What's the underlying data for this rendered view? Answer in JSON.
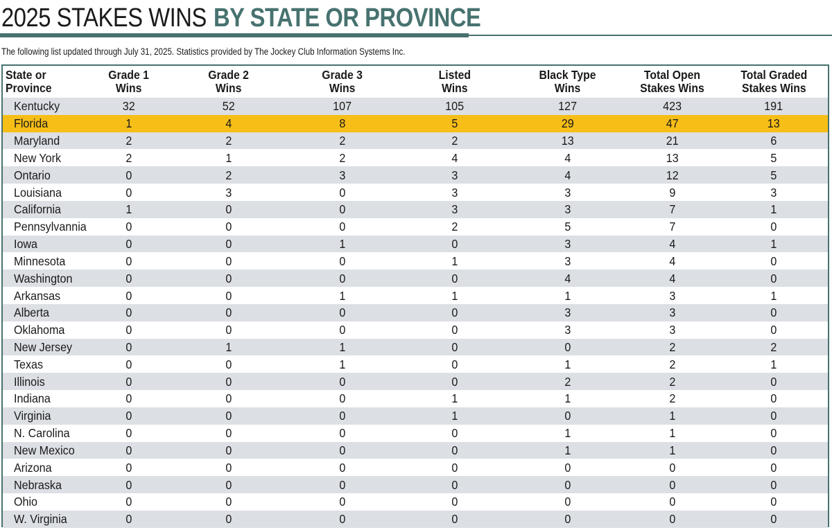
{
  "title": {
    "light": "2025 STAKES WINS",
    "bold": "BY STATE OR PROVINCE"
  },
  "subtitle": "The following list updated through July 31, 2025. Statistics provided by The Jockey Club Information Systems Inc.",
  "colors": {
    "accent": "#47726f",
    "highlight": "#f7be17",
    "stripe": "#dcdfe4"
  },
  "chart_data": {
    "type": "table",
    "columns": [
      {
        "line1": "State or",
        "line2": "Province"
      },
      {
        "line1": "Grade 1",
        "line2": "Wins"
      },
      {
        "line1": "Grade 2",
        "line2": "Wins"
      },
      {
        "line1": "Grade 3",
        "line2": "Wins"
      },
      {
        "line1": "Listed",
        "line2": "Wins"
      },
      {
        "line1": "Black Type",
        "line2": "Wins"
      },
      {
        "line1": "Total Open",
        "line2": "Stakes Wins"
      },
      {
        "line1": "Total Graded",
        "line2": "Stakes Wins"
      }
    ],
    "highlighted_row": "Florida",
    "rows": [
      [
        "Kentucky",
        "32",
        "52",
        "107",
        "105",
        "127",
        "423",
        "191"
      ],
      [
        "Florida",
        "1",
        "4",
        "8",
        "5",
        "29",
        "47",
        "13"
      ],
      [
        "Maryland",
        "2",
        "2",
        "2",
        "2",
        "13",
        "21",
        "6"
      ],
      [
        "New York",
        "2",
        "1",
        "2",
        "4",
        "4",
        "13",
        "5"
      ],
      [
        "Ontario",
        "0",
        "2",
        "3",
        "3",
        "4",
        "12",
        "5"
      ],
      [
        "Louisiana",
        "0",
        "3",
        "0",
        "3",
        "3",
        "9",
        "3"
      ],
      [
        "California",
        "1",
        "0",
        "0",
        "3",
        "3",
        "7",
        "1"
      ],
      [
        "Pennsylvannia",
        "0",
        "0",
        "0",
        "2",
        "5",
        "7",
        "0"
      ],
      [
        "Iowa",
        "0",
        "0",
        "1",
        "0",
        "3",
        "4",
        "1"
      ],
      [
        "Minnesota",
        "0",
        "0",
        "0",
        "1",
        "3",
        "4",
        "0"
      ],
      [
        "Washington",
        "0",
        "0",
        "0",
        "0",
        "4",
        "4",
        "0"
      ],
      [
        "Arkansas",
        "0",
        "0",
        "1",
        "1",
        "1",
        "3",
        "1"
      ],
      [
        "Alberta",
        "0",
        "0",
        "0",
        "0",
        "3",
        "3",
        "0"
      ],
      [
        "Oklahoma",
        "0",
        "0",
        "0",
        "0",
        "3",
        "3",
        "0"
      ],
      [
        "New Jersey",
        "0",
        "1",
        "1",
        "0",
        "0",
        "2",
        "2"
      ],
      [
        "Texas",
        "0",
        "0",
        "1",
        "0",
        "1",
        "2",
        "1"
      ],
      [
        "Illinois",
        "0",
        "0",
        "0",
        "0",
        "2",
        "2",
        "0"
      ],
      [
        "Indiana",
        "0",
        "0",
        "0",
        "1",
        "1",
        "2",
        "0"
      ],
      [
        "Virginia",
        "0",
        "0",
        "0",
        "1",
        "0",
        "1",
        "0"
      ],
      [
        "N. Carolina",
        "0",
        "0",
        "0",
        "0",
        "1",
        "1",
        "0"
      ],
      [
        "New Mexico",
        "0",
        "0",
        "0",
        "0",
        "1",
        "1",
        "0"
      ],
      [
        "Arizona",
        "0",
        "0",
        "0",
        "0",
        "0",
        "0",
        "0"
      ],
      [
        "Nebraska",
        "0",
        "0",
        "0",
        "0",
        "0",
        "0",
        "0"
      ],
      [
        "Ohio",
        "0",
        "0",
        "0",
        "0",
        "0",
        "0",
        "0"
      ],
      [
        "W. Virginia",
        "0",
        "0",
        "0",
        "0",
        "0",
        "0",
        "0"
      ]
    ]
  }
}
